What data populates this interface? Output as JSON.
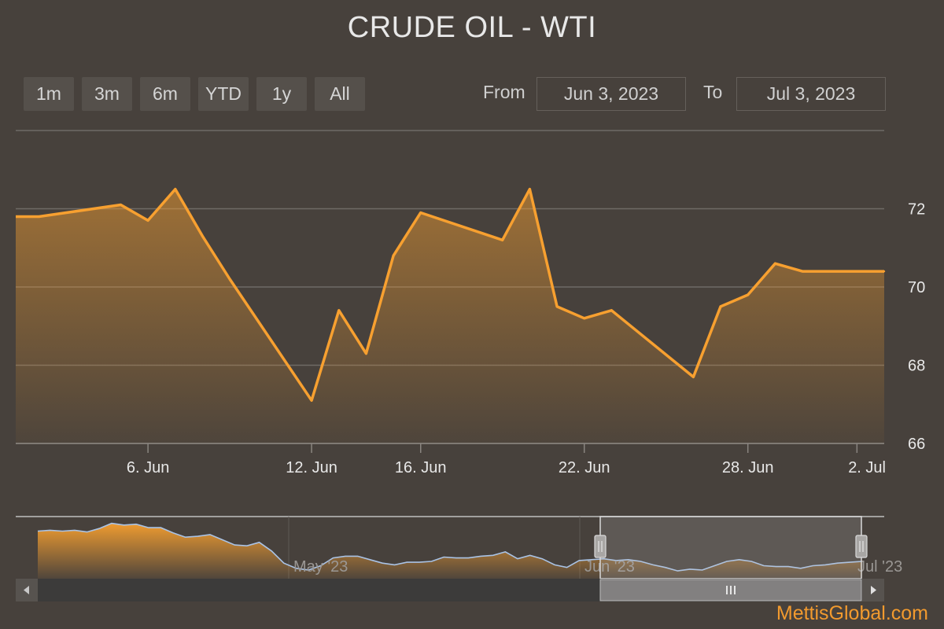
{
  "title": "CRUDE OIL - WTI",
  "range_selector": {
    "buttons": [
      "1m",
      "3m",
      "6m",
      "YTD",
      "1y",
      "All"
    ],
    "selected": "1m",
    "from_label": "From",
    "from_value": "Jun 3, 2023",
    "to_label": "To",
    "to_value": "Jul 3, 2023"
  },
  "credits": "MettisGlobal.com",
  "colors": {
    "line": "#f7a030",
    "background": "#47413c",
    "navigator_line": "#a9c3e6"
  },
  "chart_data": [
    {
      "type": "area",
      "series": [
        {
          "x": [
            "2023-06-02",
            "2023-06-05",
            "2023-06-06",
            "2023-06-07",
            "2023-06-08",
            "2023-06-09",
            "2023-06-12",
            "2023-06-13",
            "2023-06-14",
            "2023-06-15",
            "2023-06-16",
            "2023-06-19",
            "2023-06-20",
            "2023-06-21",
            "2023-06-22",
            "2023-06-23",
            "2023-06-26",
            "2023-06-27",
            "2023-06-28",
            "2023-06-29",
            "2023-06-30",
            "2023-07-03"
          ],
          "values": [
            71.8,
            72.1,
            71.7,
            72.5,
            71.3,
            70.2,
            67.1,
            69.4,
            68.3,
            70.8,
            71.9,
            71.2,
            72.5,
            69.5,
            69.2,
            69.4,
            67.7,
            69.5,
            69.8,
            70.6,
            70.4,
            70.4
          ]
        }
      ],
      "x_ticks": [
        "6. Jun",
        "12. Jun",
        "16. Jun",
        "22. Jun",
        "28. Jun",
        "2. Jul"
      ],
      "y_ticks": [
        66,
        68,
        70,
        72
      ],
      "ylim": [
        66,
        74
      ],
      "grid": true,
      "legend": "none"
    },
    {
      "type": "area",
      "role": "navigator",
      "x_ticks": [
        "May '23",
        "Jun '23",
        "Jul '23"
      ],
      "values": [
        72.5,
        72.6,
        72.5,
        72.6,
        72.4,
        72.8,
        73.4,
        73.2,
        73.3,
        72.9,
        72.9,
        72.3,
        71.8,
        71.9,
        72.1,
        71.5,
        70.9,
        70.8,
        71.2,
        70.2,
        68.8,
        68.2,
        68.0,
        68.5,
        69.4,
        69.6,
        69.6,
        69.2,
        68.8,
        68.6,
        68.9,
        68.9,
        69.0,
        69.5,
        69.4,
        69.4,
        69.6,
        69.7,
        70.1,
        69.3,
        69.7,
        69.3,
        68.6,
        68.3,
        69.1,
        69.2,
        69.3,
        69.1,
        69.2,
        69.0,
        68.6,
        68.3,
        67.9,
        68.1,
        68.0,
        68.5,
        69.0,
        69.2,
        69.0,
        68.5,
        68.4,
        68.4,
        68.2,
        68.5,
        68.6,
        68.8,
        68.9,
        69.0
      ],
      "selected_range": [
        "Jun 3, 2023",
        "Jul 3, 2023"
      ]
    }
  ]
}
